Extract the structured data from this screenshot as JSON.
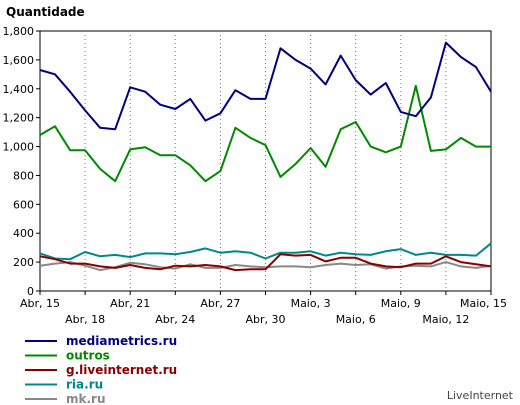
{
  "chart_data": {
    "type": "line",
    "title": "Quantidade",
    "credit": "LiveInternet",
    "x": [
      "Abr, 15",
      "Abr, 16",
      "Abr, 17",
      "Abr, 18",
      "Abr, 19",
      "Abr, 20",
      "Abr, 21",
      "Abr, 22",
      "Abr, 23",
      "Abr, 24",
      "Abr, 25",
      "Abr, 26",
      "Abr, 27",
      "Abr, 28",
      "Abr, 29",
      "Abr, 30",
      "Maio, 1",
      "Maio, 2",
      "Maio, 3",
      "Maio, 4",
      "Maio, 5",
      "Maio, 6",
      "Maio, 7",
      "Maio, 8",
      "Maio, 9",
      "Maio, 10",
      "Maio, 11",
      "Maio, 12",
      "Maio, 13",
      "Maio, 14",
      "Maio, 15"
    ],
    "tick_labels_upper": [
      {
        "index": 0,
        "label": "Abr, 15"
      },
      {
        "index": 6,
        "label": "Abr, 21"
      },
      {
        "index": 12,
        "label": "Abr, 27"
      },
      {
        "index": 18,
        "label": "Maio, 3"
      },
      {
        "index": 24,
        "label": "Maio, 9"
      },
      {
        "index": 30,
        "label": "Maio, 15"
      }
    ],
    "tick_labels_lower": [
      {
        "index": 3,
        "label": "Abr, 18"
      },
      {
        "index": 9,
        "label": "Abr, 24"
      },
      {
        "index": 15,
        "label": "Abr, 30"
      },
      {
        "index": 21,
        "label": "Maio, 6"
      },
      {
        "index": 27,
        "label": "Maio, 12"
      }
    ],
    "y_ticks": [
      "0",
      "200",
      "400",
      "600",
      "800",
      "1,000",
      "1,200",
      "1,400",
      "1,600",
      "1,800"
    ],
    "ylim": [
      0,
      1800
    ],
    "grid": "vertical dotted lines on labeled dates",
    "legend_position": "bottom-left",
    "series": [
      {
        "name": "mediametrics.ru",
        "color": "#000080",
        "values": [
          1530,
          1500,
          1380,
          1250,
          1130,
          1120,
          1410,
          1380,
          1290,
          1260,
          1330,
          1180,
          1230,
          1390,
          1330,
          1330,
          1680,
          1600,
          1540,
          1430,
          1630,
          1460,
          1360,
          1440,
          1240,
          1210,
          1340,
          1720,
          1620,
          1550,
          1380
        ]
      },
      {
        "name": "outros",
        "color": "#008800",
        "values": [
          1080,
          1140,
          975,
          975,
          845,
          760,
          980,
          995,
          940,
          940,
          870,
          760,
          830,
          1130,
          1060,
          1010,
          790,
          880,
          990,
          860,
          1120,
          1170,
          1000,
          960,
          1000,
          1420,
          970,
          980,
          1060,
          1000,
          1000
        ]
      },
      {
        "name": "g.liveinternet.ru",
        "color": "#880000",
        "values": [
          240,
          220,
          190,
          190,
          170,
          160,
          180,
          160,
          150,
          175,
          170,
          180,
          170,
          145,
          150,
          150,
          255,
          245,
          250,
          205,
          230,
          230,
          190,
          170,
          165,
          190,
          190,
          240,
          200,
          185,
          170
        ]
      },
      {
        "name": "ria.ru",
        "color": "#008888",
        "values": [
          260,
          225,
          220,
          270,
          240,
          250,
          235,
          260,
          260,
          255,
          270,
          295,
          265,
          275,
          265,
          225,
          265,
          265,
          275,
          245,
          265,
          255,
          250,
          275,
          290,
          250,
          265,
          250,
          250,
          245,
          330
        ]
      },
      {
        "name": "mk.ru",
        "color": "#888888",
        "values": [
          175,
          190,
          200,
          175,
          145,
          165,
          195,
          185,
          165,
          155,
          185,
          160,
          160,
          180,
          170,
          165,
          170,
          170,
          165,
          180,
          190,
          180,
          185,
          155,
          170,
          175,
          170,
          200,
          170,
          160,
          175
        ]
      }
    ]
  }
}
